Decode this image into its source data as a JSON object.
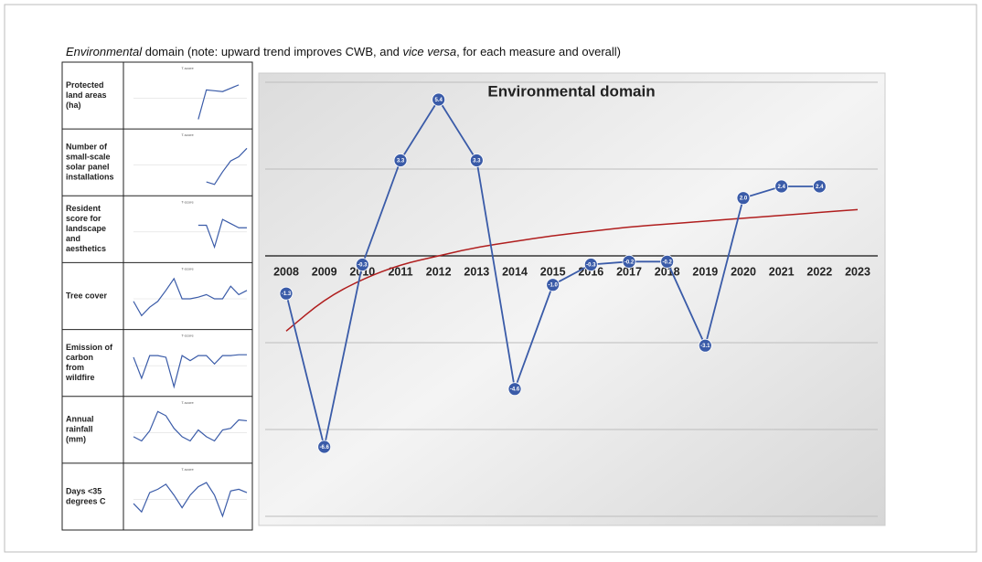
{
  "caption": [
    "Environmental",
    " domain (note: upward trend improves CWB, and ",
    "vice versa",
    ", for each measure and overall)"
  ],
  "sparklines": {
    "ylim": [
      -3,
      3
    ],
    "rows": [
      {
        "label": [
          "Protected",
          "land areas",
          "(ha)"
        ],
        "subtitle": "T-score",
        "values": [
          null,
          null,
          null,
          null,
          null,
          null,
          null,
          null,
          -2.5,
          1.0,
          0.9,
          0.8,
          1.2,
          1.6,
          null
        ]
      },
      {
        "label": [
          "Number of",
          "small-scale",
          "solar panel",
          "installations"
        ],
        "subtitle": "T-score",
        "values": [
          null,
          null,
          null,
          null,
          null,
          null,
          null,
          null,
          null,
          -2.0,
          -2.3,
          -0.8,
          0.5,
          1.0,
          2.0
        ]
      },
      {
        "label": [
          "Resident",
          "score for",
          "landscape",
          "and",
          "aesthetics"
        ],
        "subtitle": "T-score",
        "values": [
          null,
          null,
          null,
          null,
          null,
          null,
          null,
          null,
          0.8,
          0.8,
          -1.8,
          1.5,
          1.0,
          0.5,
          0.5
        ]
      },
      {
        "label": [
          "Tree cover"
        ],
        "subtitle": "T-score",
        "values": [
          -0.3,
          -2.0,
          -1.0,
          -0.3,
          1.0,
          2.4,
          0.0,
          0.0,
          0.2,
          0.5,
          0.0,
          0.0,
          1.5,
          0.5,
          1.0
        ]
      },
      {
        "label": [
          "Emission of",
          "carbon",
          "from",
          "wildfire"
        ],
        "subtitle": "T-score",
        "values": [
          1.0,
          -1.5,
          1.2,
          1.2,
          1.0,
          -2.5,
          1.2,
          0.6,
          1.2,
          1.2,
          0.2,
          1.2,
          1.2,
          1.3,
          1.3
        ]
      },
      {
        "label": [
          "Annual",
          "rainfall",
          "(mm)"
        ],
        "subtitle": "T-score",
        "values": [
          -0.5,
          -1.0,
          0.2,
          2.5,
          2.0,
          0.5,
          -0.5,
          -1.0,
          0.3,
          -0.5,
          -1.0,
          0.3,
          0.5,
          1.5,
          1.4
        ]
      },
      {
        "label": [
          "Days <35",
          "degrees C"
        ],
        "subtitle": "T-score",
        "values": [
          -0.5,
          -1.5,
          0.8,
          1.2,
          1.8,
          0.5,
          -1.0,
          0.5,
          1.5,
          2.0,
          0.5,
          -2.0,
          1.0,
          1.2,
          0.8
        ]
      }
    ]
  },
  "chart_data": {
    "type": "line",
    "title": "Environmental domain",
    "categories": [
      "2008",
      "2009",
      "2010",
      "2011",
      "2012",
      "2013",
      "2014",
      "2015",
      "2016",
      "2017",
      "2018",
      "2019",
      "2020",
      "2021",
      "2022",
      "2023"
    ],
    "series": [
      {
        "color": "#3a5ba8",
        "values": [
          -1.3,
          -6.6,
          -0.3,
          3.3,
          5.4,
          3.3,
          -4.6,
          -1.0,
          -0.3,
          -0.2,
          -0.2,
          -3.1,
          2.0,
          2.4,
          2.4,
          null
        ],
        "value_labels": [
          "-1.3",
          "-6.6",
          "-0.3",
          "3.3",
          "5.4",
          "3.3",
          "-4.6",
          "-1.0",
          "-0.3",
          "-0.2",
          "-0.2",
          "-3.1",
          "2.0",
          "2.4",
          "2.4",
          null
        ]
      }
    ],
    "trendline": {
      "color": "#b01e1e",
      "values": [
        -2.6,
        -1.5,
        -0.8,
        -0.3,
        0.0,
        0.3,
        0.5,
        0.7,
        0.85,
        1.0,
        1.1,
        1.2,
        1.3,
        1.4,
        1.5,
        1.6
      ]
    },
    "ylim": [
      -9,
      6
    ],
    "yticks": [
      -9,
      -6,
      -3,
      3,
      6
    ],
    "grid": true
  }
}
